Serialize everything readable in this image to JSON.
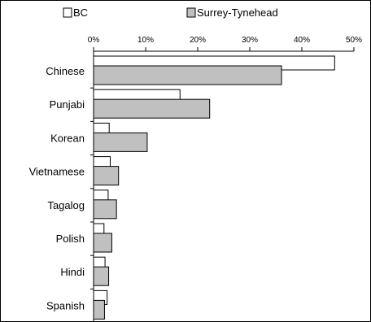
{
  "chart_data": {
    "type": "bar",
    "orientation": "horizontal",
    "categories": [
      "Chinese",
      "Punjabi",
      "Korean",
      "Vietnamese",
      "Tagalog",
      "Polish",
      "Hindi",
      "Spanish"
    ],
    "series": [
      {
        "name": "BC",
        "values": [
          46.3,
          16.6,
          3.0,
          3.2,
          2.8,
          2.0,
          2.2,
          2.6
        ],
        "color": "#ffffff"
      },
      {
        "name": "Surrey-Tynehead",
        "values": [
          36.1,
          22.3,
          10.3,
          4.8,
          4.4,
          3.5,
          2.9,
          2.1
        ],
        "color": "#c0c0c0"
      }
    ],
    "xlim": [
      0,
      50
    ],
    "x_ticks": [
      "0%",
      "10%",
      "20%",
      "30%",
      "40%",
      "50%"
    ],
    "x_tick_values": [
      0,
      10,
      20,
      30,
      40,
      50
    ],
    "x_axis_position": "top",
    "grid": false,
    "legend_position": "top"
  }
}
